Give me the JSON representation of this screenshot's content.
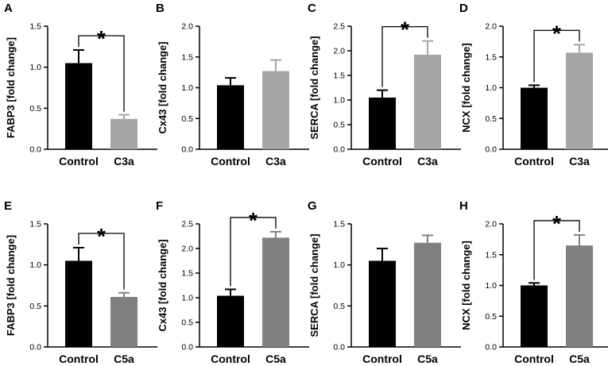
{
  "chart_data": [
    {
      "panel": "A",
      "type": "bar",
      "ylabel": "FABP3 [fold change]",
      "ylim": [
        0,
        1.5
      ],
      "yticks": [
        "0.0",
        "0.5",
        "1.0",
        "1.5"
      ],
      "categories": [
        "Control",
        "C3a"
      ],
      "values": [
        1.05,
        0.37
      ],
      "errors": [
        0.16,
        0.05
      ],
      "colors": [
        "#000000",
        "#a6a6a6"
      ],
      "significance": "*"
    },
    {
      "panel": "B",
      "type": "bar",
      "ylabel": "Cx43 [fold change]",
      "ylim": [
        0,
        2.0
      ],
      "yticks": [
        "0.0",
        "0.5",
        "1.0",
        "1.5",
        "2.0"
      ],
      "categories": [
        "Control",
        "C3a"
      ],
      "values": [
        1.04,
        1.27
      ],
      "errors": [
        0.12,
        0.18
      ],
      "colors": [
        "#000000",
        "#a6a6a6"
      ],
      "significance": ""
    },
    {
      "panel": "C",
      "type": "bar",
      "ylabel": "SERCA [fold change]",
      "ylim": [
        0,
        2.5
      ],
      "yticks": [
        "0.0",
        "0.5",
        "1.0",
        "1.5",
        "2.0",
        "2.5"
      ],
      "categories": [
        "Control",
        "C3a"
      ],
      "values": [
        1.05,
        1.92
      ],
      "errors": [
        0.15,
        0.28
      ],
      "colors": [
        "#000000",
        "#a6a6a6"
      ],
      "significance": "*"
    },
    {
      "panel": "D",
      "type": "bar",
      "ylabel": "NCX [fold change]",
      "ylim": [
        0,
        2.0
      ],
      "yticks": [
        "0.0",
        "0.5",
        "1.0",
        "1.5",
        "2.0"
      ],
      "categories": [
        "Control",
        "C3a"
      ],
      "values": [
        1.0,
        1.57
      ],
      "errors": [
        0.04,
        0.13
      ],
      "colors": [
        "#000000",
        "#a6a6a6"
      ],
      "significance": "*"
    },
    {
      "panel": "E",
      "type": "bar",
      "ylabel": "FABP3 [fold change]",
      "ylim": [
        0,
        1.5
      ],
      "yticks": [
        "0.0",
        "0.5",
        "1.0",
        "1.5"
      ],
      "categories": [
        "Control",
        "C5a"
      ],
      "values": [
        1.05,
        0.61
      ],
      "errors": [
        0.16,
        0.05
      ],
      "colors": [
        "#000000",
        "#808080"
      ],
      "significance": "*"
    },
    {
      "panel": "F",
      "type": "bar",
      "ylabel": "Cx43 [fold change]",
      "ylim": [
        0,
        2.5
      ],
      "yticks": [
        "0.0",
        "0.5",
        "1.0",
        "1.5",
        "2.0",
        "2.5"
      ],
      "categories": [
        "Control",
        "C5a"
      ],
      "values": [
        1.04,
        2.22
      ],
      "errors": [
        0.13,
        0.12
      ],
      "colors": [
        "#000000",
        "#808080"
      ],
      "significance": "*"
    },
    {
      "panel": "G",
      "type": "bar",
      "ylabel": "SERCA [fold change]",
      "ylim": [
        0,
        1.5
      ],
      "yticks": [
        "0.0",
        "0.5",
        "1.0",
        "1.5"
      ],
      "categories": [
        "Control",
        "C5a"
      ],
      "values": [
        1.05,
        1.27
      ],
      "errors": [
        0.15,
        0.09
      ],
      "colors": [
        "#000000",
        "#808080"
      ],
      "significance": ""
    },
    {
      "panel": "H",
      "type": "bar",
      "ylabel": "NCX [fold change]",
      "ylim": [
        0,
        2.0
      ],
      "yticks": [
        "0.0",
        "0.5",
        "1.0",
        "1.5",
        "2.0"
      ],
      "categories": [
        "Control",
        "C5a"
      ],
      "values": [
        1.0,
        1.65
      ],
      "errors": [
        0.04,
        0.17
      ],
      "colors": [
        "#000000",
        "#808080"
      ],
      "significance": "*"
    }
  ]
}
